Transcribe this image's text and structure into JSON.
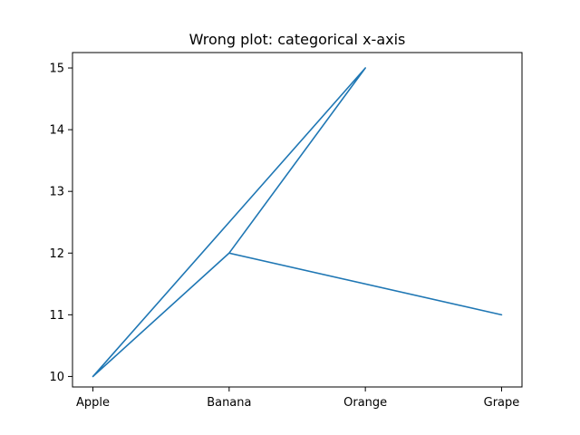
{
  "chart_data": {
    "type": "line",
    "title": "Wrong plot: categorical x-axis",
    "xlabel": "",
    "ylabel": "",
    "categories": [
      "Apple",
      "Banana",
      "Orange",
      "Grape"
    ],
    "points": [
      {
        "x": "Apple",
        "y": 10
      },
      {
        "x": "Orange",
        "y": 15
      },
      {
        "x": "Banana",
        "y": 12
      },
      {
        "x": "Apple",
        "y": 10
      },
      {
        "x": "Banana",
        "y": 12
      },
      {
        "x": "Orange",
        "y": 15
      },
      {
        "x": "Banana",
        "y": 12
      },
      {
        "x": "Grape",
        "y": 11
      }
    ],
    "ylim": [
      9.83,
      15.25
    ],
    "yticks": [
      10,
      11,
      12,
      13,
      14,
      15
    ],
    "grid": false,
    "legend": "none",
    "line_color": "#1f77b4"
  }
}
